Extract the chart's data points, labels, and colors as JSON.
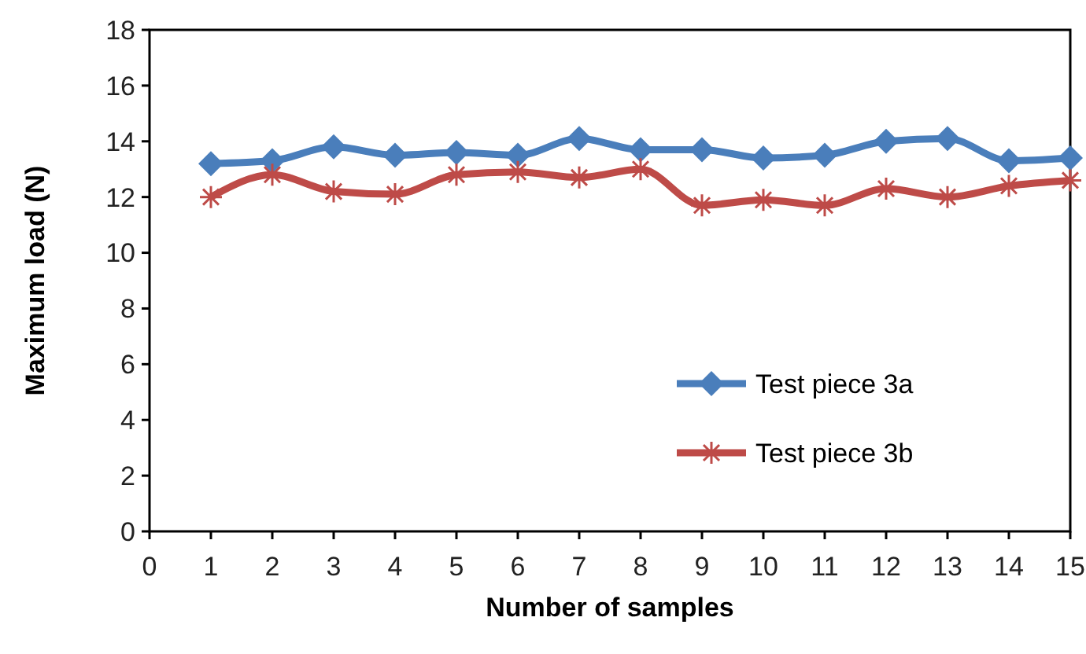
{
  "chart_data": {
    "type": "line",
    "xlabel": "Number of samples",
    "ylabel": "Maximum load (N)",
    "x": [
      1,
      2,
      3,
      4,
      5,
      6,
      7,
      8,
      9,
      10,
      11,
      12,
      13,
      14,
      15
    ],
    "xlim": [
      0,
      15
    ],
    "xticks": [
      0,
      1,
      2,
      3,
      4,
      5,
      6,
      7,
      8,
      9,
      10,
      11,
      12,
      13,
      14,
      15
    ],
    "ylim": [
      0,
      18
    ],
    "yticks": [
      0,
      2,
      4,
      6,
      8,
      10,
      12,
      14,
      16,
      18
    ],
    "grid": false,
    "legend": "bottom right",
    "series": [
      {
        "name": "Test piece 3a",
        "color": "#4a7ebb",
        "marker": "diamond",
        "values": [
          13.2,
          13.3,
          13.8,
          13.5,
          13.6,
          13.5,
          14.1,
          13.7,
          13.7,
          13.4,
          13.5,
          14.0,
          14.1,
          13.3,
          13.4
        ]
      },
      {
        "name": "Test piece 3b",
        "color": "#be4b48",
        "marker": "cross",
        "values": [
          12.0,
          12.8,
          12.2,
          12.1,
          12.8,
          12.9,
          12.7,
          13.0,
          11.7,
          11.9,
          11.7,
          12.3,
          12.0,
          12.4,
          12.6
        ]
      }
    ]
  }
}
